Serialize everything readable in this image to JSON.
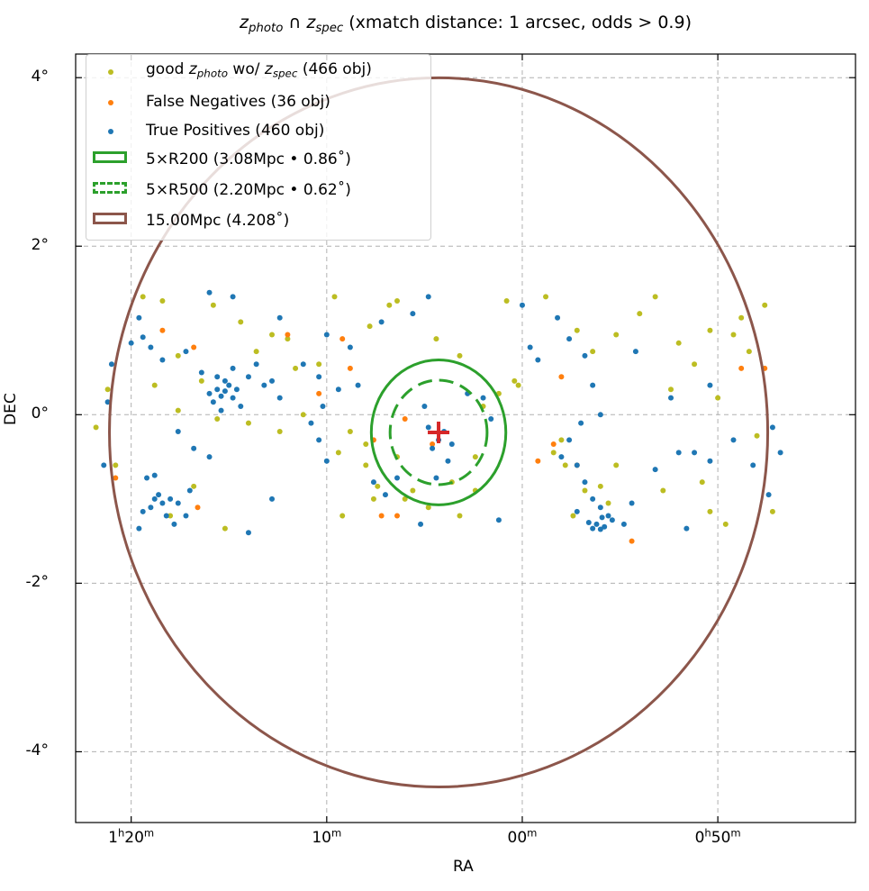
{
  "chart_data": {
    "type": "scatter",
    "title": {
      "z1": "z",
      "sub1": "photo",
      "mid": " ∩ ",
      "z2": "z",
      "sub2": "spec",
      "rest": " (xmatch distance: 1 arcsec, odds > 0.9)"
    },
    "xlabel": "RA",
    "ylabel": "DEC",
    "xlim_deg": [
      20.71,
      10.74
    ],
    "ylim_deg": [
      -4.84,
      4.28
    ],
    "grid": true,
    "legend_placement": "top-left",
    "xticks": [
      {
        "value": 20.0,
        "parts": [
          [
            "1",
            ""
          ],
          [
            "h",
            "sup"
          ],
          [
            "20",
            ""
          ],
          [
            "m",
            "sup"
          ]
        ]
      },
      {
        "value": 17.5,
        "parts": [
          [
            "10",
            ""
          ],
          [
            "m",
            "sup"
          ]
        ]
      },
      {
        "value": 15.0,
        "parts": [
          [
            "00",
            ""
          ],
          [
            "m",
            "sup"
          ]
        ]
      },
      {
        "value": 12.5,
        "parts": [
          [
            "0",
            ""
          ],
          [
            "h",
            "sup"
          ],
          [
            "50",
            ""
          ],
          [
            "m",
            "sup"
          ]
        ]
      }
    ],
    "yticks": [
      {
        "value": 4,
        "label": "4°"
      },
      {
        "value": 2,
        "label": "2°"
      },
      {
        "value": 0,
        "label": "0°"
      },
      {
        "value": -2,
        "label": "-2°"
      },
      {
        "value": -4,
        "label": "-4°"
      }
    ],
    "center": {
      "ra": 16.07,
      "dec": -0.21,
      "color": "#d62728"
    },
    "circles": [
      {
        "name": "5×R200",
        "radius_deg": 0.86,
        "color": "#2ca02c",
        "dashed": false
      },
      {
        "name": "5×R500",
        "radius_deg": 0.62,
        "color": "#2ca02c",
        "dashed": true
      },
      {
        "name": "15.00Mpc",
        "radius_deg": 4.208,
        "color": "#8c564b",
        "dashed": false
      }
    ],
    "legend": [
      {
        "type": "dot",
        "color": "#bcbd22",
        "pre": "good ",
        "z1": "z",
        "sub1": "photo",
        "mid": " wo/ ",
        "z2": "z",
        "sub2": "spec",
        "post": " (466 obj)"
      },
      {
        "type": "dot",
        "color": "#ff7f0e",
        "label": "False Negatives (36 obj)"
      },
      {
        "type": "dot",
        "color": "#1f77b4",
        "label": "True Positives (460 obj)"
      },
      {
        "type": "patch",
        "color": "#2ca02c",
        "dashed": false,
        "label": "5×R200 (3.08Mpc • 0.86$^\\circ$)",
        "text": "5×R200 (3.08Mpc • 0.86˚)"
      },
      {
        "type": "patch",
        "color": "#2ca02c",
        "dashed": true,
        "text": "5×R500 (2.20Mpc • 0.62˚)"
      },
      {
        "type": "patch",
        "color": "#8c564b",
        "dashed": false,
        "text": "15.00Mpc (4.208˚)"
      }
    ],
    "series": [
      {
        "name": "good z_photo wo/ z_spec",
        "count": 466,
        "color": "#bcbd22",
        "points": [
          [
            19.85,
            1.4
          ],
          [
            19.6,
            1.35
          ],
          [
            18.95,
            1.3
          ],
          [
            18.6,
            1.1
          ],
          [
            18.0,
            0.9
          ],
          [
            17.9,
            0.55
          ],
          [
            18.4,
            0.75
          ],
          [
            19.1,
            0.4
          ],
          [
            19.4,
            0.7
          ],
          [
            19.7,
            0.35
          ],
          [
            20.3,
            0.3
          ],
          [
            20.45,
            -0.15
          ],
          [
            20.2,
            -0.6
          ],
          [
            19.5,
            -1.2
          ],
          [
            19.2,
            -0.85
          ],
          [
            18.8,
            -1.35
          ],
          [
            18.5,
            -0.1
          ],
          [
            17.6,
            0.6
          ],
          [
            17.8,
            0.0
          ],
          [
            17.2,
            -0.2
          ],
          [
            17.0,
            -0.6
          ],
          [
            16.9,
            -1.0
          ],
          [
            17.3,
            -1.2
          ],
          [
            16.7,
            1.3
          ],
          [
            16.6,
            1.35
          ],
          [
            16.95,
            1.05
          ],
          [
            17.4,
            1.4
          ],
          [
            16.1,
            0.9
          ],
          [
            15.8,
            0.7
          ],
          [
            15.9,
            -0.8
          ],
          [
            16.4,
            -0.9
          ],
          [
            16.5,
            -1.0
          ],
          [
            16.6,
            -0.5
          ],
          [
            15.6,
            -0.5
          ],
          [
            15.5,
            0.1
          ],
          [
            15.1,
            0.4
          ],
          [
            15.2,
            1.35
          ],
          [
            14.7,
            1.4
          ],
          [
            14.3,
            1.0
          ],
          [
            14.1,
            0.75
          ],
          [
            13.8,
            0.95
          ],
          [
            13.5,
            1.2
          ],
          [
            13.3,
            1.4
          ],
          [
            13.0,
            0.85
          ],
          [
            12.6,
            1.0
          ],
          [
            12.2,
            1.15
          ],
          [
            12.1,
            0.75
          ],
          [
            11.9,
            1.3
          ],
          [
            12.8,
            0.6
          ],
          [
            13.1,
            0.3
          ],
          [
            14.5,
            -0.3
          ],
          [
            14.45,
            -0.6
          ],
          [
            14.0,
            -0.85
          ],
          [
            14.2,
            -0.9
          ],
          [
            13.9,
            -1.05
          ],
          [
            13.8,
            -0.6
          ],
          [
            13.2,
            -0.9
          ],
          [
            12.6,
            -1.15
          ],
          [
            12.4,
            -1.3
          ],
          [
            12.7,
            -0.8
          ],
          [
            11.8,
            -1.15
          ],
          [
            12.0,
            -0.25
          ],
          [
            12.5,
            0.2
          ],
          [
            15.8,
            -1.2
          ],
          [
            15.6,
            -0.9
          ],
          [
            16.2,
            -1.1
          ],
          [
            19.4,
            0.05
          ],
          [
            18.9,
            -0.05
          ],
          [
            18.2,
            0.95
          ],
          [
            17.0,
            -0.35
          ],
          [
            15.05,
            0.35
          ],
          [
            15.3,
            0.25
          ],
          [
            14.35,
            -1.2
          ],
          [
            14.6,
            -0.45
          ],
          [
            12.3,
            0.95
          ],
          [
            18.1,
            -0.2
          ],
          [
            17.35,
            -0.45
          ],
          [
            16.85,
            -0.85
          ]
        ]
      },
      {
        "name": "False Negatives",
        "count": 36,
        "color": "#ff7f0e",
        "points": [
          [
            19.6,
            1.0
          ],
          [
            19.2,
            0.8
          ],
          [
            20.2,
            -0.75
          ],
          [
            19.15,
            -1.1
          ],
          [
            18.0,
            0.95
          ],
          [
            17.6,
            0.25
          ],
          [
            16.9,
            -0.3
          ],
          [
            17.3,
            0.9
          ],
          [
            16.8,
            -1.2
          ],
          [
            16.6,
            -1.2
          ],
          [
            16.5,
            -0.05
          ],
          [
            16.15,
            -0.35
          ],
          [
            14.5,
            0.45
          ],
          [
            14.6,
            -0.35
          ],
          [
            14.3,
            -0.6
          ],
          [
            14.8,
            -0.55
          ],
          [
            13.6,
            -1.5
          ],
          [
            11.9,
            0.55
          ],
          [
            12.2,
            0.55
          ],
          [
            17.2,
            0.55
          ]
        ]
      },
      {
        "name": "True Positives",
        "count": 460,
        "color": "#1f77b4",
        "points": [
          [
            18.9,
            0.3
          ],
          [
            18.85,
            0.22
          ],
          [
            18.8,
            0.28
          ],
          [
            18.75,
            0.35
          ],
          [
            18.7,
            0.2
          ],
          [
            18.95,
            0.15
          ],
          [
            18.8,
            0.4
          ],
          [
            18.65,
            0.3
          ],
          [
            19.0,
            0.25
          ],
          [
            18.9,
            0.45
          ],
          [
            18.6,
            0.1
          ],
          [
            18.85,
            0.05
          ],
          [
            18.5,
            0.45
          ],
          [
            18.4,
            0.6
          ],
          [
            19.1,
            0.5
          ],
          [
            18.7,
            0.55
          ],
          [
            19.3,
            0.75
          ],
          [
            18.3,
            0.35
          ],
          [
            19.7,
            -1.0
          ],
          [
            19.6,
            -1.05
          ],
          [
            19.75,
            -1.1
          ],
          [
            19.5,
            -1.0
          ],
          [
            19.65,
            -0.95
          ],
          [
            19.8,
            -0.75
          ],
          [
            19.7,
            -0.72
          ],
          [
            19.55,
            -1.2
          ],
          [
            19.85,
            -1.15
          ],
          [
            19.4,
            -1.05
          ],
          [
            19.9,
            -1.35
          ],
          [
            19.45,
            -1.3
          ],
          [
            19.3,
            -1.2
          ],
          [
            19.25,
            -0.9
          ],
          [
            20.0,
            0.85
          ],
          [
            19.85,
            0.92
          ],
          [
            19.75,
            0.8
          ],
          [
            19.6,
            0.65
          ],
          [
            20.25,
            0.6
          ],
          [
            20.3,
            0.15
          ],
          [
            19.9,
            1.15
          ],
          [
            19.0,
            1.45
          ],
          [
            18.7,
            1.4
          ],
          [
            18.1,
            1.15
          ],
          [
            17.5,
            0.95
          ],
          [
            17.2,
            0.8
          ],
          [
            16.8,
            1.1
          ],
          [
            16.4,
            1.2
          ],
          [
            16.2,
            1.4
          ],
          [
            17.8,
            0.6
          ],
          [
            17.6,
            0.45
          ],
          [
            17.35,
            0.3
          ],
          [
            17.1,
            0.35
          ],
          [
            17.55,
            0.1
          ],
          [
            18.2,
            0.4
          ],
          [
            18.1,
            0.2
          ],
          [
            17.7,
            -0.1
          ],
          [
            17.6,
            -0.3
          ],
          [
            17.5,
            -0.55
          ],
          [
            19.2,
            -0.4
          ],
          [
            19.0,
            -0.5
          ],
          [
            19.4,
            -0.2
          ],
          [
            20.35,
            -0.6
          ],
          [
            18.2,
            -1.0
          ],
          [
            18.5,
            -1.4
          ],
          [
            16.75,
            -0.95
          ],
          [
            16.6,
            -0.75
          ],
          [
            16.9,
            -0.8
          ],
          [
            16.07,
            -0.3
          ],
          [
            16.0,
            -0.2
          ],
          [
            16.15,
            -0.4
          ],
          [
            15.9,
            -0.35
          ],
          [
            16.2,
            -0.15
          ],
          [
            15.95,
            -0.55
          ],
          [
            16.1,
            -0.75
          ],
          [
            16.25,
            0.1
          ],
          [
            15.7,
            0.25
          ],
          [
            15.5,
            0.2
          ],
          [
            15.4,
            -0.05
          ],
          [
            15.3,
            -1.25
          ],
          [
            16.3,
            -1.3
          ],
          [
            14.9,
            0.8
          ],
          [
            14.8,
            0.65
          ],
          [
            14.4,
            0.9
          ],
          [
            14.2,
            0.7
          ],
          [
            14.1,
            0.35
          ],
          [
            14.0,
            0.0
          ],
          [
            14.25,
            -0.1
          ],
          [
            14.4,
            -0.3
          ],
          [
            14.5,
            -0.5
          ],
          [
            14.3,
            -0.6
          ],
          [
            14.2,
            -0.8
          ],
          [
            14.1,
            -1.0
          ],
          [
            14.0,
            -1.1
          ],
          [
            13.9,
            -1.2
          ],
          [
            14.05,
            -1.3
          ],
          [
            13.95,
            -1.33
          ],
          [
            14.15,
            -1.28
          ],
          [
            13.85,
            -1.25
          ],
          [
            14.3,
            -1.15
          ],
          [
            13.7,
            -1.3
          ],
          [
            13.6,
            -1.05
          ],
          [
            13.3,
            -0.65
          ],
          [
            13.0,
            -0.45
          ],
          [
            12.8,
            -0.45
          ],
          [
            12.6,
            -0.55
          ],
          [
            12.9,
            -1.35
          ],
          [
            12.3,
            -0.3
          ],
          [
            12.05,
            -0.6
          ],
          [
            11.85,
            -0.95
          ],
          [
            11.7,
            -0.45
          ],
          [
            11.8,
            -0.15
          ],
          [
            13.55,
            0.75
          ],
          [
            14.55,
            1.15
          ],
          [
            15.0,
            1.3
          ],
          [
            12.6,
            0.35
          ],
          [
            13.1,
            0.2
          ],
          [
            14.0,
            -1.36
          ],
          [
            14.1,
            -1.35
          ],
          [
            13.98,
            -1.22
          ]
        ]
      }
    ]
  }
}
